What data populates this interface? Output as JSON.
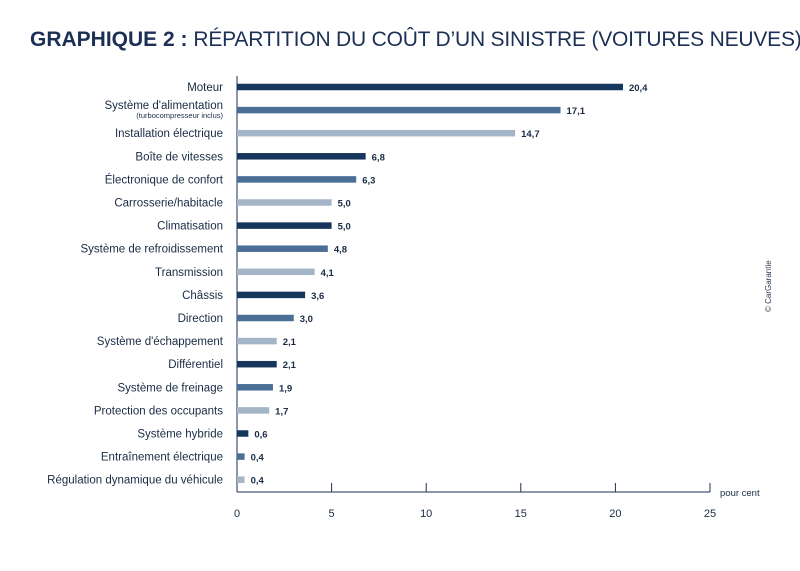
{
  "header": {
    "title_bold": "GRAPHIQUE 2 :",
    "title_rest": "RÉPARTITION DU COÛT D’UN SINISTRE (VOITURES NEUVES)"
  },
  "credit": "© CarGarantie",
  "colors": {
    "dark": "#17365d",
    "mid": "#4a6e96",
    "light": "#a5b5c8",
    "axis": "#1c2f55",
    "text": "#1a2b44"
  },
  "chart_data": {
    "type": "bar",
    "orientation": "horizontal",
    "title": "GRAPHIQUE 2 : RÉPARTITION DU COÛT D’UN SINISTRE (VOITURES NEUVES)",
    "xlabel": "pour cent",
    "ylabel": "",
    "xlim": [
      0,
      25
    ],
    "xticks": [
      "0",
      "5",
      "10",
      "15",
      "20",
      "25"
    ],
    "grid": false,
    "categories": [
      {
        "label": "Moteur",
        "sublabel": "",
        "value": 20.4,
        "value_label": "20,4",
        "shade": "dark"
      },
      {
        "label": "Système d'alimentation",
        "sublabel": "(turbocompresseur inclus)",
        "value": 17.1,
        "value_label": "17,1",
        "shade": "mid"
      },
      {
        "label": "Installation électrique",
        "sublabel": "",
        "value": 14.7,
        "value_label": "14,7",
        "shade": "light"
      },
      {
        "label": "Boîte de vitesses",
        "sublabel": "",
        "value": 6.8,
        "value_label": "6,8",
        "shade": "dark"
      },
      {
        "label": "Électronique de confort",
        "sublabel": "",
        "value": 6.3,
        "value_label": "6,3",
        "shade": "mid"
      },
      {
        "label": "Carrosserie/habitacle",
        "sublabel": "",
        "value": 5.0,
        "value_label": "5,0",
        "shade": "light"
      },
      {
        "label": "Climatisation",
        "sublabel": "",
        "value": 5.0,
        "value_label": "5,0",
        "shade": "dark"
      },
      {
        "label": "Système de refroidissement",
        "sublabel": "",
        "value": 4.8,
        "value_label": "4,8",
        "shade": "mid"
      },
      {
        "label": "Transmission",
        "sublabel": "",
        "value": 4.1,
        "value_label": "4,1",
        "shade": "light"
      },
      {
        "label": "Châssis",
        "sublabel": "",
        "value": 3.6,
        "value_label": "3,6",
        "shade": "dark"
      },
      {
        "label": "Direction",
        "sublabel": "",
        "value": 3.0,
        "value_label": "3,0",
        "shade": "mid"
      },
      {
        "label": "Système d'échappement",
        "sublabel": "",
        "value": 2.1,
        "value_label": "2,1",
        "shade": "light"
      },
      {
        "label": "Différentiel",
        "sublabel": "",
        "value": 2.1,
        "value_label": "2,1",
        "shade": "dark"
      },
      {
        "label": "Système de freinage",
        "sublabel": "",
        "value": 1.9,
        "value_label": "1,9",
        "shade": "mid"
      },
      {
        "label": "Protection des occupants",
        "sublabel": "",
        "value": 1.7,
        "value_label": "1,7",
        "shade": "light"
      },
      {
        "label": "Système hybride",
        "sublabel": "",
        "value": 0.6,
        "value_label": "0,6",
        "shade": "dark"
      },
      {
        "label": "Entraînement électrique",
        "sublabel": "",
        "value": 0.4,
        "value_label": "0,4",
        "shade": "mid"
      },
      {
        "label": "Régulation dynamique du véhicule",
        "sublabel": "",
        "value": 0.4,
        "value_label": "0,4",
        "shade": "light"
      }
    ]
  }
}
